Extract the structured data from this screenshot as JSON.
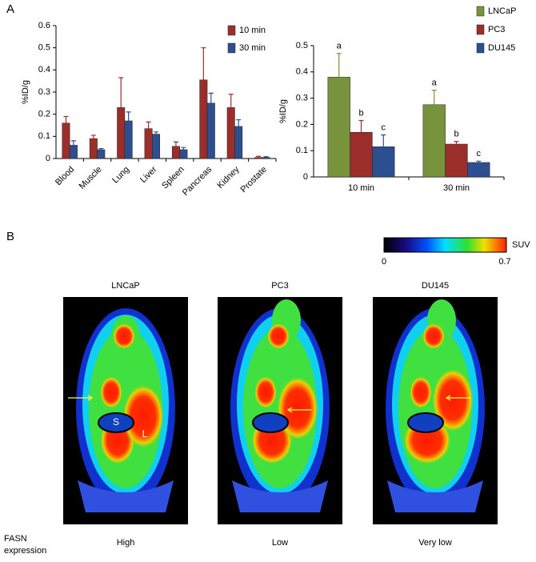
{
  "chart_data": [
    {
      "type": "bar",
      "ylabel": "%ID/g",
      "categories": [
        "Blood",
        "Muscle",
        "Lung",
        "Liver",
        "Spleen",
        "Pancreas",
        "Kidney",
        "Prostate"
      ],
      "series": [
        {
          "name": "10 min",
          "color": "#9b2d2b",
          "values": [
            0.16,
            0.09,
            0.23,
            0.135,
            0.055,
            0.355,
            0.23,
            0.005
          ],
          "errors": [
            0.03,
            0.015,
            0.135,
            0.03,
            0.02,
            0.145,
            0.06,
            0.005
          ]
        },
        {
          "name": "30 min",
          "color": "#2e4f8f",
          "values": [
            0.06,
            0.04,
            0.17,
            0.11,
            0.04,
            0.25,
            0.145,
            0.005
          ],
          "errors": [
            0.02,
            0.005,
            0.04,
            0.01,
            0.01,
            0.045,
            0.03,
            0.003
          ]
        }
      ],
      "ylim": [
        0,
        0.6
      ],
      "yticks": [
        0,
        0.1,
        0.2,
        0.3,
        0.4,
        0.5,
        0.6
      ]
    },
    {
      "type": "bar",
      "ylabel": "%ID/g",
      "categories": [
        "10 min",
        "30 min"
      ],
      "series": [
        {
          "name": "LNCaP",
          "color": "#77933c",
          "values": [
            0.38,
            0.275
          ],
          "errors": [
            0.09,
            0.055
          ],
          "labels": [
            "a",
            "a"
          ]
        },
        {
          "name": "PC3",
          "color": "#9b2d2b",
          "values": [
            0.17,
            0.125
          ],
          "errors": [
            0.045,
            0.01
          ],
          "labels": [
            "b",
            "b"
          ]
        },
        {
          "name": "DU145",
          "color": "#2e4f8f",
          "values": [
            0.115,
            0.055
          ],
          "errors": [
            0.045,
            0.005
          ],
          "labels": [
            "c",
            "c"
          ]
        }
      ],
      "ylim": [
        0,
        0.5
      ],
      "yticks": [
        0,
        0.1,
        0.2,
        0.3,
        0.4,
        0.5
      ]
    }
  ],
  "panels": [
    "A",
    "B"
  ],
  "colorbar": {
    "label": "SUV",
    "min": 0,
    "max": 0.7
  },
  "images": [
    {
      "title": "LNCaP",
      "expression": "High",
      "marks": [
        "S",
        "L"
      ]
    },
    {
      "title": "PC3",
      "expression": "Low"
    },
    {
      "title": "DU145",
      "expression": "Very low"
    }
  ],
  "row_label": "FASN expression"
}
